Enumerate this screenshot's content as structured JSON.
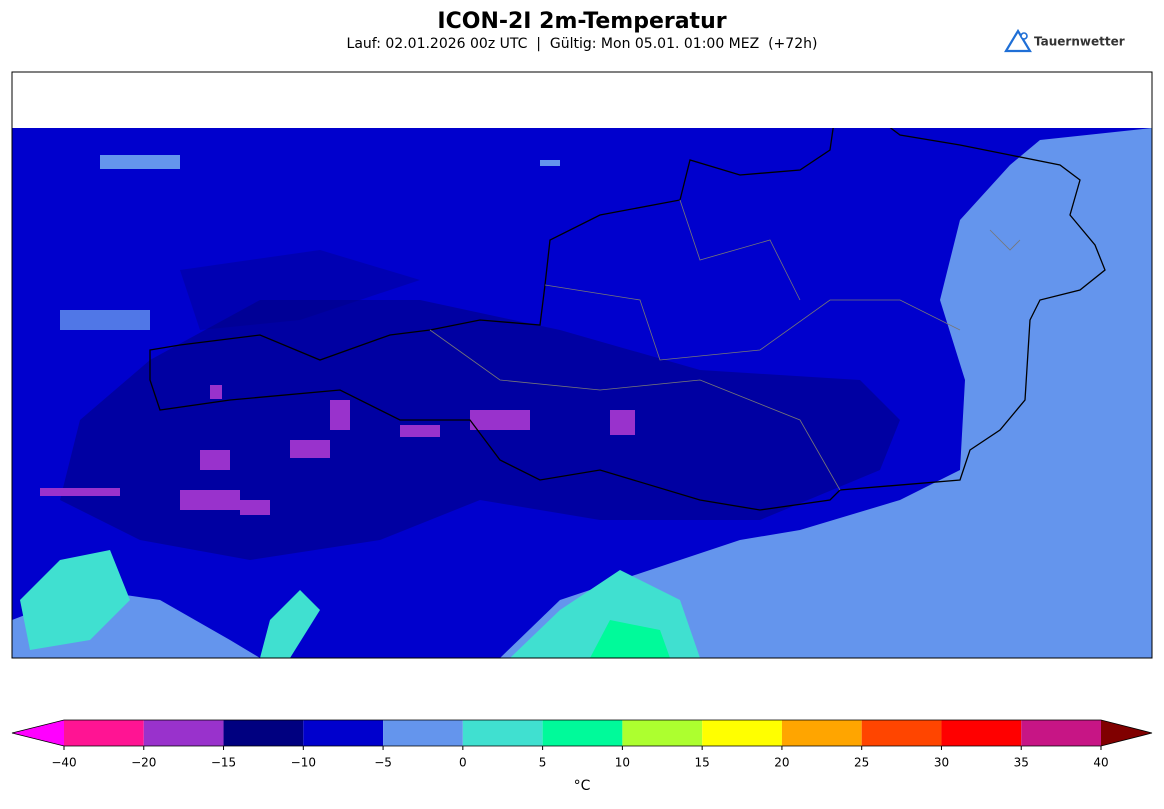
{
  "header": {
    "title": "ICON-2I 2m-Temperatur",
    "subtitle": "Lauf: 02.01.2026 00z UTC  |  Gültig: Mon 05.01. 01:00 MEZ  (+72h)",
    "logo": "Tauernwetter"
  },
  "colorbar": {
    "ticks": [
      {
        "value": -40,
        "label": "−40"
      },
      {
        "value": -20,
        "label": "−20"
      },
      {
        "value": -15,
        "label": "−15"
      },
      {
        "value": -10,
        "label": "−10"
      },
      {
        "value": -5,
        "label": "−5"
      },
      0,
      5,
      10,
      15,
      20,
      25,
      30,
      35,
      40
    ],
    "colors": [
      "#ff1493",
      "#9932cc",
      "#000080",
      "#0000cd",
      "#6495ed",
      "#40e0d0",
      "#00fa9a",
      "#adff2f",
      "#ffff00",
      "#ffa500",
      "#ff4500",
      "#ff0000",
      "#c71585"
    ],
    "under_color": "#ff00ff",
    "over_color": "#800000",
    "label": "°C"
  }
}
